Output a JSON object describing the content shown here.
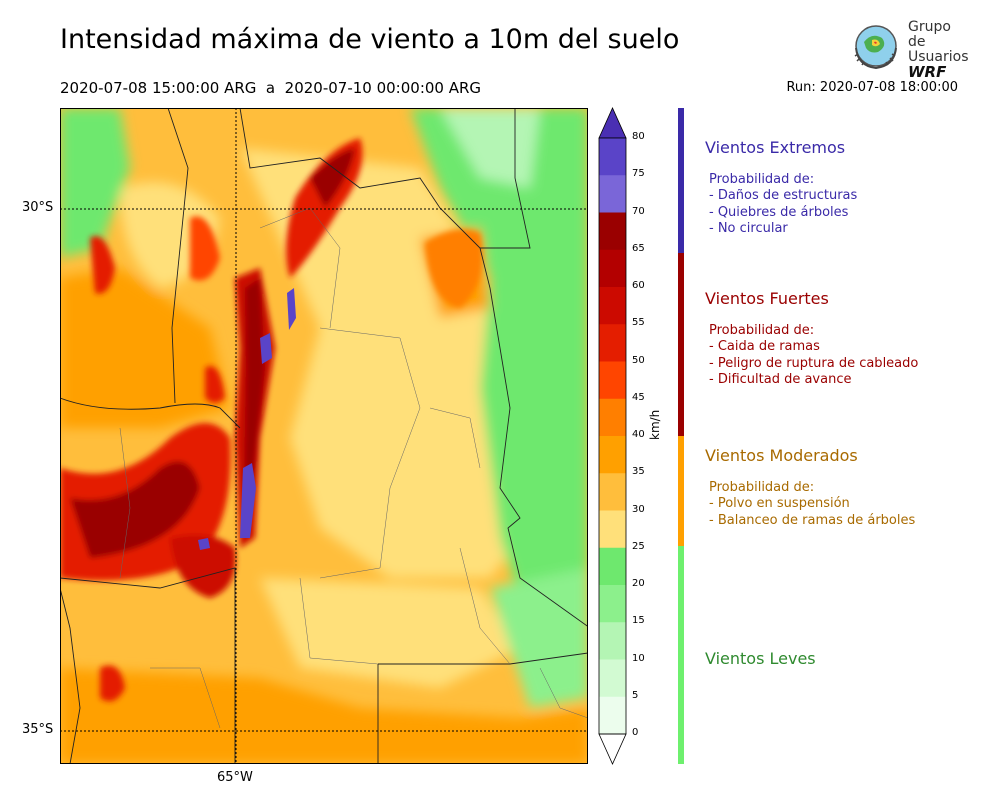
{
  "header": {
    "title": "Intensidad máxima de viento a 10m del suelo",
    "period": "2020-07-08 15:00:00 ARG  a  2020-07-10 00:00:00 ARG",
    "run": "Run: 2020-07-08 18:00:00"
  },
  "logo": {
    "line1": "Grupo de",
    "line2": "Usuarios",
    "line3": "WRF"
  },
  "map": {
    "lat_labels": [
      "30°S",
      "35°S"
    ],
    "lon_labels": [
      "65°W"
    ]
  },
  "colorbar": {
    "unit": "km/h",
    "ticks": [
      "80",
      "75",
      "70",
      "65",
      "60",
      "55",
      "50",
      "45",
      "40",
      "35",
      "30",
      "25",
      "20",
      "15",
      "10",
      "5",
      "0"
    ],
    "colors": [
      "#4a2fb3",
      "#5a44c8",
      "#7a66d8",
      "#9a0000",
      "#b30000",
      "#cc0a00",
      "#e41e00",
      "#ff4500",
      "#ff7f00",
      "#ffa000",
      "#ffbe3c",
      "#ffe07a",
      "#6ee86e",
      "#8cf08c",
      "#b4f5b4",
      "#d2fad2",
      "#ecfded"
    ]
  },
  "categories": [
    {
      "title": "Vientos Extremos",
      "color": "#3a2aa8",
      "lines": [
        "Probabilidad de:",
        "- Daños de estructuras",
        "- Quiebres de árboles",
        "- No circular"
      ]
    },
    {
      "title": "Vientos Fuertes",
      "color": "#9a0000",
      "lines": [
        "Probabilidad de:",
        "- Caida de ramas",
        "- Peligro de ruptura de cableado",
        "- Dificultad de avance"
      ]
    },
    {
      "title": "Vientos Moderados",
      "color": "#a86a00",
      "bar_color": "#ffa000",
      "lines": [
        "Probabilidad de:",
        "- Polvo en suspensión",
        "- Balanceo de ramas de árboles"
      ]
    },
    {
      "title": "Vientos Leves",
      "color": "#2f8a2f",
      "bar_color": "#6ef06e",
      "lines": []
    }
  ]
}
